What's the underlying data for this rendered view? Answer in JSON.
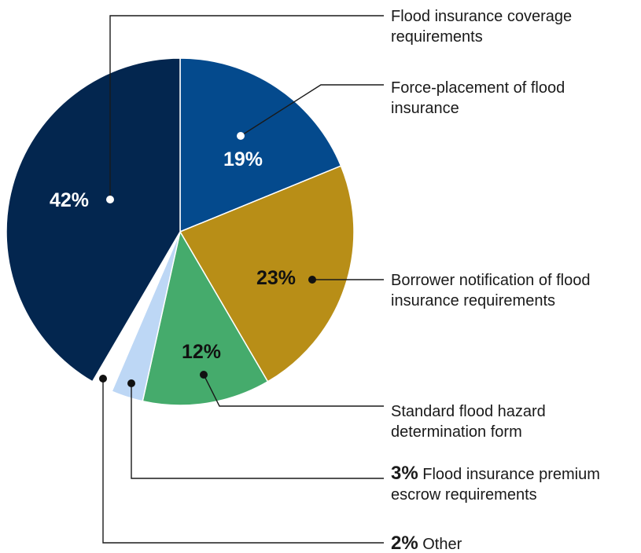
{
  "chart_data": {
    "type": "pie",
    "slices": [
      {
        "label_lines": [
          "Force-placement of flood",
          "insurance"
        ],
        "value": 19,
        "value_label": "19%",
        "color": "#044A8D",
        "text_color": "#ffffff"
      },
      {
        "label_lines": [
          "Borrower notification of flood",
          "insurance requirements"
        ],
        "value": 23,
        "value_label": "23%",
        "color": "#B88E17",
        "text_color": "#111111"
      },
      {
        "label_lines": [
          "Standard flood hazard",
          "determination form"
        ],
        "value": 12,
        "value_label": "12%",
        "color": "#45AB6C",
        "text_color": "#111111"
      },
      {
        "label_lines": [
          "Flood insurance premium",
          "escrow requirements"
        ],
        "value": 3,
        "value_label": "3%",
        "color": "#BDD7F5",
        "text_color": "#111111"
      },
      {
        "label_lines": [
          "Other"
        ],
        "value": 2,
        "value_label": "2%",
        "color": "#ffffff",
        "text_color": "#111111"
      },
      {
        "label_lines": [
          "Flood insurance coverage",
          "requirements"
        ],
        "value": 42,
        "value_label": "42%",
        "color": "#03264F",
        "text_color": "#ffffff"
      }
    ]
  }
}
